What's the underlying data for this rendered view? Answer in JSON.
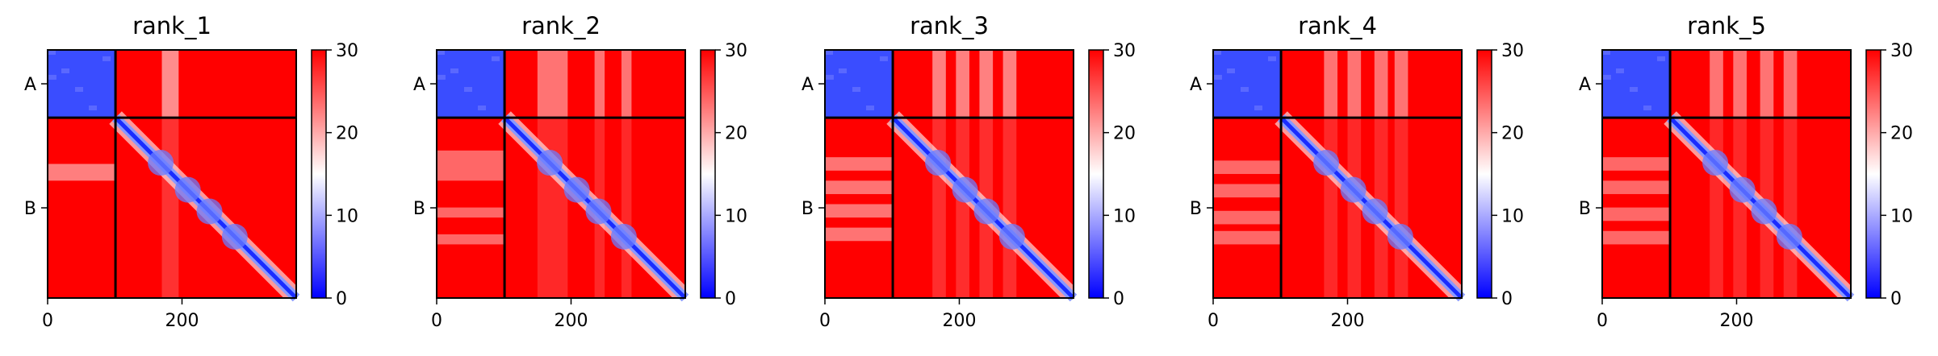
{
  "chart_data": [
    {
      "type": "heatmap",
      "title": "rank_1",
      "xlabel": "",
      "ylabel": "",
      "x_range": [
        0,
        370
      ],
      "x_ticks": [
        0,
        200
      ],
      "chain_boundary": 101,
      "y_tick_labels": [
        "A",
        "B"
      ],
      "colorbar": {
        "range": [
          0,
          30
        ],
        "ticks": [
          0,
          10,
          20,
          30
        ],
        "colormap": "bwr",
        "colors": [
          "#0000ff",
          "#ffffff",
          "#ff0000"
        ]
      },
      "grid": false,
      "features": {
        "chain_A_block": "low (blue)",
        "diagonal": "low (blue)",
        "white_bands": [
          [
            170,
            195
          ]
        ],
        "band_lightness": 0.55
      }
    },
    {
      "type": "heatmap",
      "title": "rank_2",
      "xlabel": "",
      "ylabel": "",
      "x_range": [
        0,
        370
      ],
      "x_ticks": [
        0,
        200
      ],
      "chain_boundary": 101,
      "y_tick_labels": [
        "A",
        "B"
      ],
      "colorbar": {
        "range": [
          0,
          30
        ],
        "ticks": [
          0,
          10,
          20,
          30
        ],
        "colormap": "bwr",
        "colors": [
          "#0000ff",
          "#ffffff",
          "#ff0000"
        ]
      },
      "grid": false,
      "features": {
        "chain_A_block": "low (blue)",
        "diagonal": "low (blue)",
        "white_bands": [
          [
            150,
            195
          ],
          [
            235,
            250
          ],
          [
            275,
            290
          ]
        ],
        "band_lightness": 0.45
      }
    },
    {
      "type": "heatmap",
      "title": "rank_3",
      "xlabel": "",
      "ylabel": "",
      "x_range": [
        0,
        370
      ],
      "x_ticks": [
        0,
        200
      ],
      "chain_boundary": 101,
      "y_tick_labels": [
        "A",
        "B"
      ],
      "colorbar": {
        "range": [
          0,
          30
        ],
        "ticks": [
          0,
          10,
          20,
          30
        ],
        "colormap": "bwr",
        "colors": [
          "#0000ff",
          "#ffffff",
          "#ff0000"
        ]
      },
      "grid": false,
      "features": {
        "chain_A_block": "low (blue)",
        "diagonal": "low (blue)",
        "white_bands": [
          [
            160,
            180
          ],
          [
            195,
            215
          ],
          [
            230,
            250
          ],
          [
            265,
            285
          ]
        ],
        "band_lightness": 0.5
      }
    },
    {
      "type": "heatmap",
      "title": "rank_4",
      "xlabel": "",
      "ylabel": "",
      "x_range": [
        0,
        370
      ],
      "x_ticks": [
        0,
        200
      ],
      "chain_boundary": 101,
      "y_tick_labels": [
        "A",
        "B"
      ],
      "colorbar": {
        "range": [
          0,
          30
        ],
        "ticks": [
          0,
          10,
          20,
          30
        ],
        "colormap": "bwr",
        "colors": [
          "#0000ff",
          "#ffffff",
          "#ff0000"
        ]
      },
      "grid": false,
      "features": {
        "chain_A_block": "low (blue)",
        "diagonal": "low (blue)",
        "white_bands": [
          [
            165,
            185
          ],
          [
            200,
            220
          ],
          [
            240,
            260
          ],
          [
            270,
            290
          ]
        ],
        "band_lightness": 0.45
      }
    },
    {
      "type": "heatmap",
      "title": "rank_5",
      "xlabel": "",
      "ylabel": "",
      "x_range": [
        0,
        370
      ],
      "x_ticks": [
        0,
        200
      ],
      "chain_boundary": 101,
      "y_tick_labels": [
        "A",
        "B"
      ],
      "colorbar": {
        "range": [
          0,
          30
        ],
        "ticks": [
          0,
          10,
          20,
          30
        ],
        "colormap": "bwr",
        "colors": [
          "#0000ff",
          "#ffffff",
          "#ff0000"
        ]
      },
      "grid": false,
      "features": {
        "chain_A_block": "low (blue)",
        "diagonal": "low (blue)",
        "white_bands": [
          [
            160,
            180
          ],
          [
            195,
            215
          ],
          [
            235,
            255
          ],
          [
            270,
            290
          ]
        ],
        "band_lightness": 0.45
      }
    }
  ]
}
